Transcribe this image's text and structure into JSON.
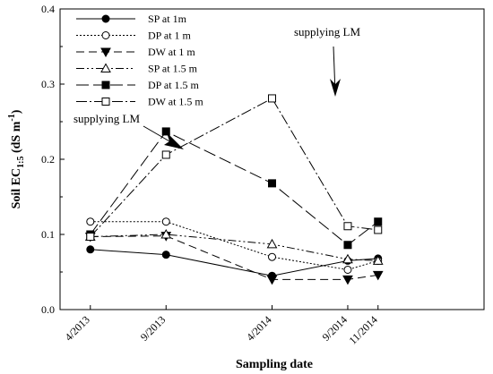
{
  "chart_data": {
    "type": "line",
    "title": "",
    "xlabel": "Sampling date",
    "ylabel_main": "Soil EC",
    "ylabel_sub": "1:5",
    "ylabel_unit_pre": " (dS m",
    "ylabel_unit_sup": "-1",
    "ylabel_unit_post": ")",
    "ylim": [
      0.0,
      0.4
    ],
    "yticks": [
      "0.0",
      "0.1",
      "0.2",
      "0.3",
      "0.4"
    ],
    "x": [
      "4/2013",
      "9/2013",
      "4/2014",
      "9/2014",
      "11/2014"
    ],
    "x_months": [
      0,
      5,
      12,
      17,
      19
    ],
    "xlim_months": [
      -2,
      26
    ],
    "grid": false,
    "legend_position": "top-left",
    "series": [
      {
        "name": "SP at 1m",
        "marker": "circle-filled",
        "dash": "",
        "values": [
          0.08,
          0.073,
          0.045,
          0.065,
          0.068
        ]
      },
      {
        "name": "DP at 1 m",
        "marker": "circle-open",
        "dash": "2,2",
        "values": [
          0.117,
          0.117,
          0.07,
          0.053,
          0.065
        ]
      },
      {
        "name": "DW at 1 m",
        "marker": "triangle-down-filled",
        "dash": "9,5",
        "values": [
          0.097,
          0.098,
          0.04,
          0.04,
          0.046
        ]
      },
      {
        "name": "SP at 1.5 m",
        "marker": "triangle-up-open",
        "dash": "9,3,2,3,2,3",
        "values": [
          0.097,
          0.1,
          0.087,
          0.067,
          0.065
        ]
      },
      {
        "name": "DP at 1.5 m",
        "marker": "square-filled",
        "dash": "14,5",
        "values": [
          0.1,
          0.237,
          0.168,
          0.086,
          0.117
        ]
      },
      {
        "name": "DW at 1.5 m",
        "marker": "square-open",
        "dash": "12,3,2,3",
        "values": [
          0.097,
          0.206,
          0.281,
          0.111,
          0.106
        ]
      }
    ],
    "annotations": [
      {
        "text": "supplying LM",
        "near": "9/2013"
      },
      {
        "text": "supplying LM",
        "near": "4/2014"
      }
    ]
  }
}
